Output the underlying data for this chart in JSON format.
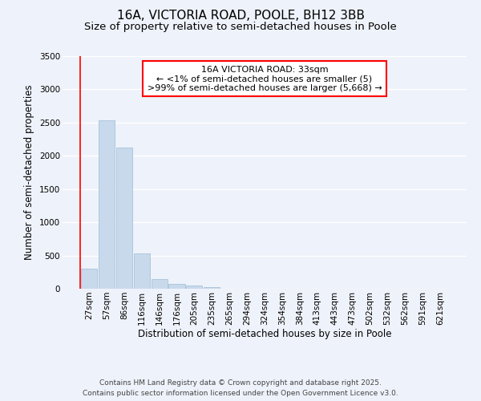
{
  "title1": "16A, VICTORIA ROAD, POOLE, BH12 3BB",
  "title2": "Size of property relative to semi-detached houses in Poole",
  "xlabel": "Distribution of semi-detached houses by size in Poole",
  "ylabel": "Number of semi-detached properties",
  "categories": [
    "27sqm",
    "57sqm",
    "86sqm",
    "116sqm",
    "146sqm",
    "176sqm",
    "205sqm",
    "235sqm",
    "265sqm",
    "294sqm",
    "324sqm",
    "354sqm",
    "384sqm",
    "413sqm",
    "443sqm",
    "473sqm",
    "502sqm",
    "532sqm",
    "562sqm",
    "591sqm",
    "621sqm"
  ],
  "values": [
    305,
    2530,
    2130,
    530,
    150,
    75,
    45,
    20,
    5,
    0,
    0,
    0,
    0,
    0,
    0,
    0,
    0,
    0,
    0,
    0,
    0
  ],
  "bar_color": "#c8d9eb",
  "bar_edgecolor": "#9bbcd4",
  "ylim": [
    0,
    3500
  ],
  "yticks": [
    0,
    500,
    1000,
    1500,
    2000,
    2500,
    3000,
    3500
  ],
  "annotation_text": "16A VICTORIA ROAD: 33sqm\n← <1% of semi-detached houses are smaller (5)\n>99% of semi-detached houses are larger (5,668) →",
  "annotation_box_color": "white",
  "annotation_box_edgecolor": "red",
  "property_line_color": "red",
  "footnote1": "Contains HM Land Registry data © Crown copyright and database right 2025.",
  "footnote2": "Contains public sector information licensed under the Open Government Licence v3.0.",
  "background_color": "#eef2fa",
  "grid_color": "white",
  "title_fontsize": 11,
  "subtitle_fontsize": 9.5,
  "axis_label_fontsize": 8.5,
  "tick_fontsize": 7.5,
  "annotation_fontsize": 8,
  "footnote_fontsize": 6.5
}
